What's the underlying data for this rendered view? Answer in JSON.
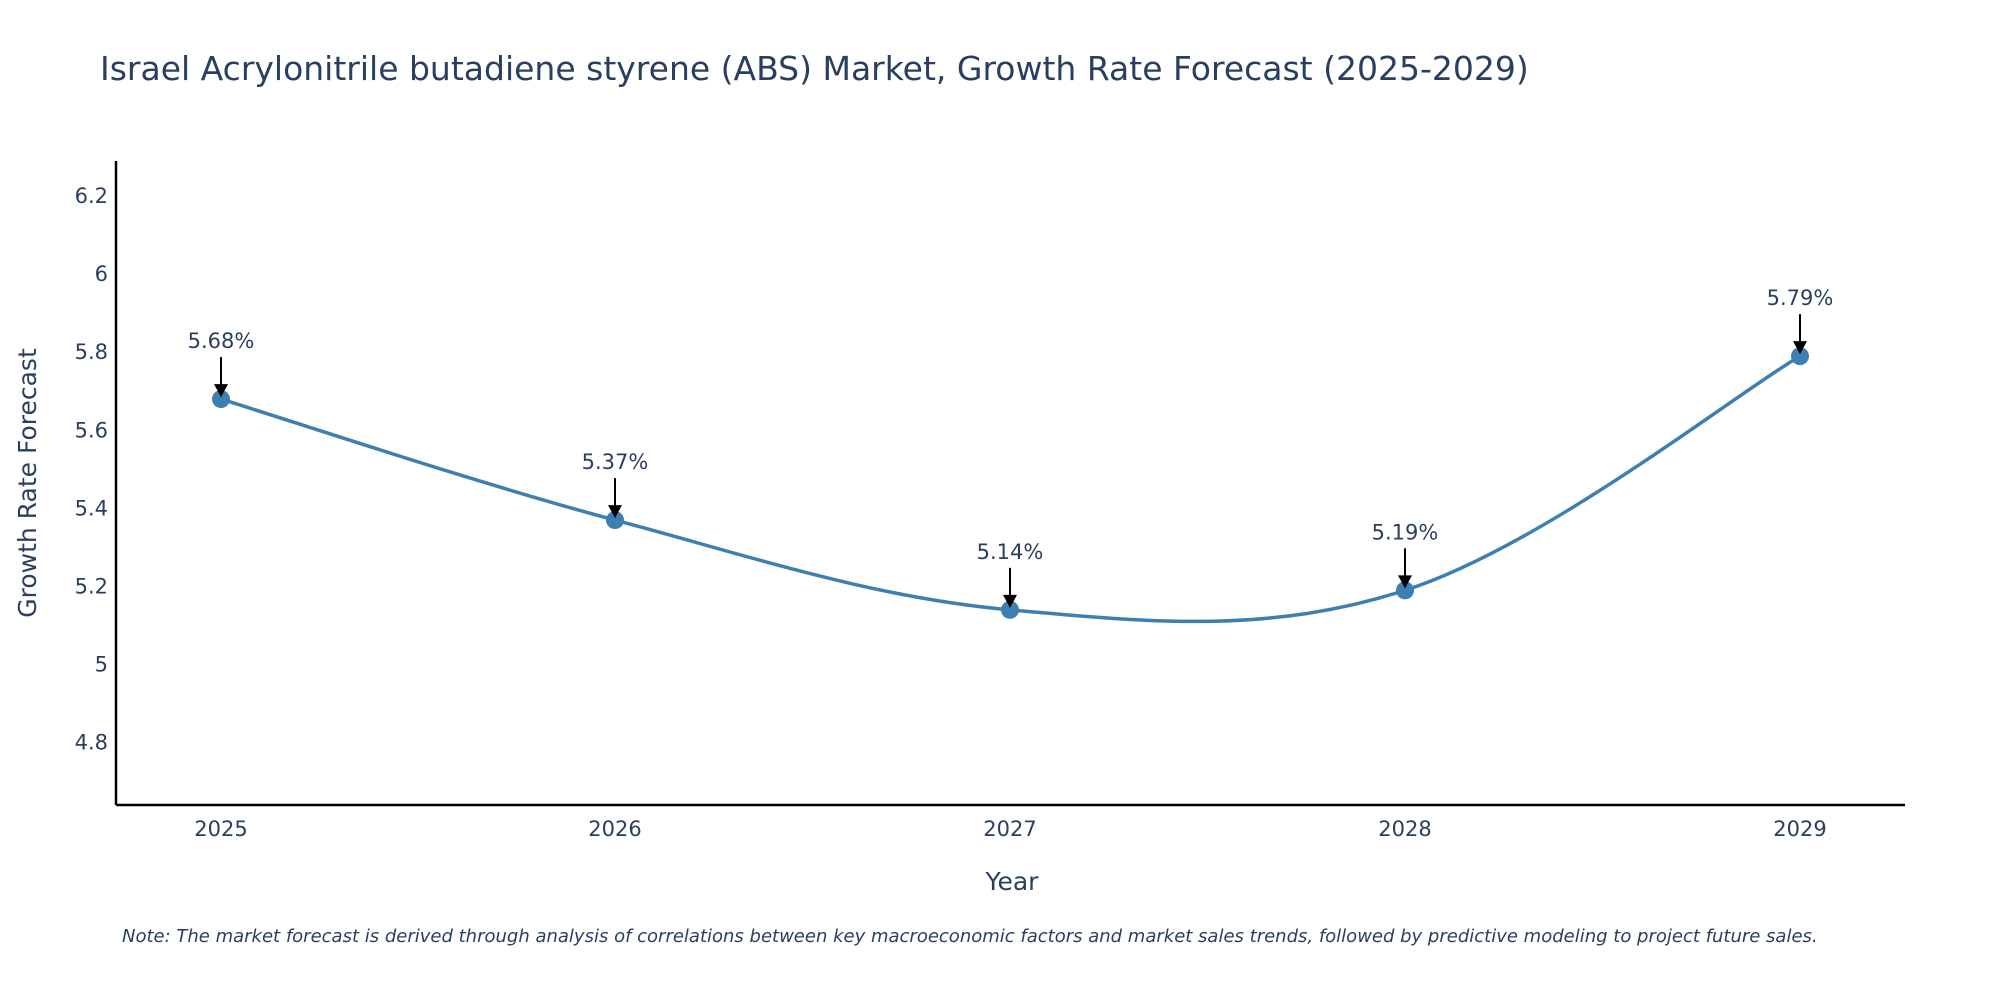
{
  "chart_data": {
    "type": "line",
    "title": "Israel Acrylonitrile butadiene styrene (ABS) Market, Growth Rate Forecast (2025-2029)",
    "xlabel": "Year",
    "ylabel": "Growth Rate Forecast",
    "categories": [
      "2025",
      "2026",
      "2027",
      "2028",
      "2029"
    ],
    "values": [
      5.68,
      5.37,
      5.14,
      5.19,
      5.79
    ],
    "data_labels": [
      "5.68%",
      "5.37%",
      "5.14%",
      "5.19%",
      "5.79%"
    ],
    "ylim": [
      4.64,
      6.29
    ],
    "yticks": [
      4.8,
      5,
      5.2,
      5.4,
      5.6,
      5.8,
      6,
      6.2
    ],
    "ytick_labels": [
      "4.8",
      "5",
      "5.2",
      "5.4",
      "5.6",
      "5.8",
      "6",
      "6.2"
    ],
    "line_shape": "spline",
    "grid": false,
    "colors": {
      "line": "#3d7fb0",
      "marker": "#3d7fb0",
      "arrow": "#000000",
      "axis": "#000000",
      "text": "#2a3f5f"
    },
    "note": "Note: The market forecast is derived through analysis of correlations between key macroeconomic factors and market sales trends, followed by predictive modeling to project future sales."
  }
}
